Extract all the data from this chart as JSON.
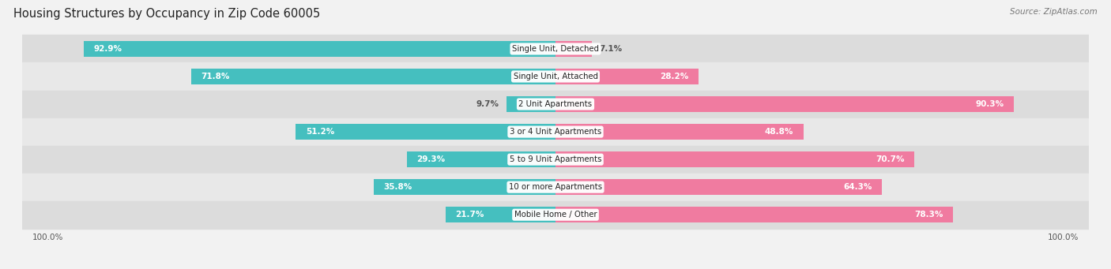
{
  "title": "Housing Structures by Occupancy in Zip Code 60005",
  "source": "Source: ZipAtlas.com",
  "categories": [
    "Single Unit, Detached",
    "Single Unit, Attached",
    "2 Unit Apartments",
    "3 or 4 Unit Apartments",
    "5 to 9 Unit Apartments",
    "10 or more Apartments",
    "Mobile Home / Other"
  ],
  "owner_pct": [
    92.9,
    71.8,
    9.7,
    51.2,
    29.3,
    35.8,
    21.7
  ],
  "renter_pct": [
    7.1,
    28.2,
    90.3,
    48.8,
    70.7,
    64.3,
    78.3
  ],
  "owner_color": "#45BFBF",
  "renter_color": "#F07BA0",
  "bg_color": "#F2F2F2",
  "row_colors": [
    "#DCDCDC",
    "#E8E8E8"
  ],
  "title_fontsize": 10.5,
  "label_fontsize": 7.5,
  "axis_label_fontsize": 7.5,
  "legend_fontsize": 8,
  "source_fontsize": 7.5
}
